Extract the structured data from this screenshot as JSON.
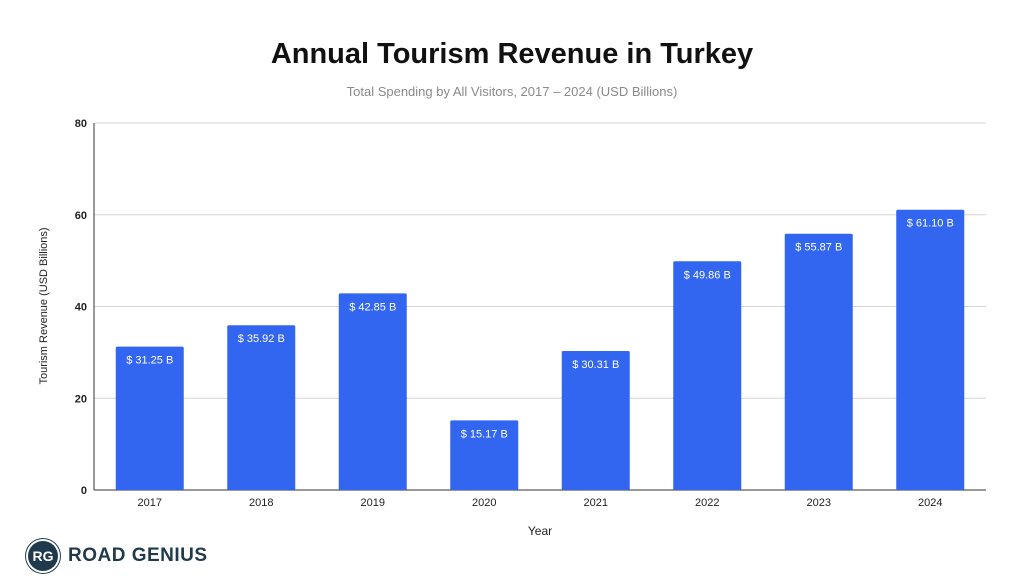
{
  "chart_data": {
    "type": "bar",
    "title": "Annual Tourism Revenue in Turkey",
    "subtitle": "Total Spending by All Visitors, 2017 – 2024 (USD Billions)",
    "xlabel": "Year",
    "ylabel": "Tourism Revenue (USD Billions)",
    "categories": [
      "2017",
      "2018",
      "2019",
      "2020",
      "2021",
      "2022",
      "2023",
      "2024"
    ],
    "values": [
      31.25,
      35.92,
      42.85,
      15.17,
      30.31,
      49.86,
      55.87,
      61.1
    ],
    "data_labels": [
      "$ 31.25 B",
      "$ 35.92 B",
      "$ 42.85 B",
      "$ 15.17 B",
      "$ 30.31 B",
      "$ 49.86 B",
      "$ 55.87 B",
      "$ 61.10 B"
    ],
    "yticks": [
      "0",
      "20",
      "40",
      "60",
      "80"
    ],
    "ylim": [
      0,
      80
    ],
    "grid": true,
    "legend": "none",
    "bar_color": "#3366f0",
    "label_color": "#ffffff"
  },
  "branding": {
    "logo_mark": "RG",
    "logo_text": "ROAD GENIUS",
    "logo_color": "#1f3a4d"
  }
}
